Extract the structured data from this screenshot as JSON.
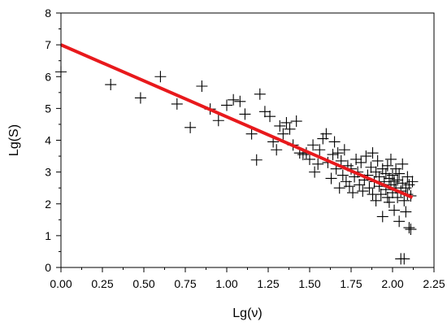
{
  "chart_data": {
    "type": "scatter",
    "title": "",
    "xlabel": "Lg(ν)",
    "ylabel": "Lg(S)",
    "xlim": [
      0.0,
      2.25
    ],
    "ylim": [
      0,
      8
    ],
    "x_ticks": [
      "0.00",
      "0.25",
      "0.50",
      "0.75",
      "1.00",
      "1.25",
      "1.50",
      "1.75",
      "2.00",
      "2.25"
    ],
    "y_ticks": [
      "0",
      "1",
      "2",
      "3",
      "4",
      "5",
      "6",
      "7",
      "8"
    ],
    "grid": false,
    "marker": "plus",
    "marker_color": "#000000",
    "fit_line": {
      "x": [
        0.0,
        2.12
      ],
      "y": [
        7.0,
        2.2
      ],
      "color": "#e8191c"
    },
    "points": [
      [
        0.0,
        6.15
      ],
      [
        0.3,
        5.75
      ],
      [
        0.48,
        5.33
      ],
      [
        0.6,
        6.0
      ],
      [
        0.7,
        5.14
      ],
      [
        0.78,
        4.4
      ],
      [
        0.85,
        5.7
      ],
      [
        0.9,
        4.98
      ],
      [
        0.95,
        4.62
      ],
      [
        1.0,
        5.1
      ],
      [
        1.04,
        5.27
      ],
      [
        1.08,
        5.22
      ],
      [
        1.11,
        4.82
      ],
      [
        1.15,
        4.2
      ],
      [
        1.18,
        3.38
      ],
      [
        1.2,
        5.45
      ],
      [
        1.23,
        4.9
      ],
      [
        1.26,
        4.75
      ],
      [
        1.28,
        3.95
      ],
      [
        1.3,
        3.7
      ],
      [
        1.32,
        4.45
      ],
      [
        1.34,
        4.2
      ],
      [
        1.36,
        4.55
      ],
      [
        1.38,
        4.35
      ],
      [
        1.4,
        3.85
      ],
      [
        1.42,
        4.6
      ],
      [
        1.44,
        3.6
      ],
      [
        1.46,
        3.55
      ],
      [
        1.48,
        3.6
      ],
      [
        1.5,
        3.4
      ],
      [
        1.52,
        3.85
      ],
      [
        1.53,
        3.0
      ],
      [
        1.55,
        3.25
      ],
      [
        1.56,
        3.7
      ],
      [
        1.58,
        4.05
      ],
      [
        1.6,
        4.2
      ],
      [
        1.61,
        3.3
      ],
      [
        1.63,
        2.8
      ],
      [
        1.64,
        3.55
      ],
      [
        1.65,
        3.95
      ],
      [
        1.66,
        3.1
      ],
      [
        1.67,
        3.6
      ],
      [
        1.68,
        2.5
      ],
      [
        1.69,
        3.35
      ],
      [
        1.7,
        2.9
      ],
      [
        1.71,
        3.7
      ],
      [
        1.72,
        2.7
      ],
      [
        1.73,
        3.2
      ],
      [
        1.74,
        2.55
      ],
      [
        1.75,
        3.1
      ],
      [
        1.76,
        2.35
      ],
      [
        1.77,
        2.85
      ],
      [
        1.78,
        3.4
      ],
      [
        1.79,
        3.0
      ],
      [
        1.8,
        2.6
      ],
      [
        1.81,
        3.3
      ],
      [
        1.82,
        2.4
      ],
      [
        1.83,
        2.75
      ],
      [
        1.84,
        3.5
      ],
      [
        1.85,
        2.9
      ],
      [
        1.86,
        2.5
      ],
      [
        1.87,
        3.15
      ],
      [
        1.88,
        2.3
      ],
      [
        1.88,
        3.6
      ],
      [
        1.89,
        2.7
      ],
      [
        1.9,
        3.0
      ],
      [
        1.9,
        2.1
      ],
      [
        1.91,
        3.35
      ],
      [
        1.92,
        2.55
      ],
      [
        1.92,
        2.85
      ],
      [
        1.93,
        2.3
      ],
      [
        1.94,
        3.1
      ],
      [
        1.94,
        1.6
      ],
      [
        1.95,
        2.7
      ],
      [
        1.96,
        2.95
      ],
      [
        1.96,
        2.45
      ],
      [
        1.97,
        2.2
      ],
      [
        1.97,
        3.2
      ],
      [
        1.98,
        2.8
      ],
      [
        1.98,
        2.05
      ],
      [
        1.99,
        2.6
      ],
      [
        1.99,
        3.4
      ],
      [
        2.0,
        2.35
      ],
      [
        2.0,
        2.9
      ],
      [
        2.01,
        2.7
      ],
      [
        2.01,
        1.8
      ],
      [
        2.02,
        3.1
      ],
      [
        2.02,
        2.5
      ],
      [
        2.03,
        2.2
      ],
      [
        2.03,
        2.75
      ],
      [
        2.04,
        2.95
      ],
      [
        2.04,
        1.45
      ],
      [
        2.05,
        2.4
      ],
      [
        2.05,
        0.27
      ],
      [
        2.06,
        2.65
      ],
      [
        2.06,
        3.25
      ],
      [
        2.07,
        2.1
      ],
      [
        2.07,
        0.27
      ],
      [
        2.08,
        2.5
      ],
      [
        2.08,
        1.75
      ],
      [
        2.09,
        2.85
      ],
      [
        2.09,
        2.3
      ],
      [
        2.1,
        2.6
      ],
      [
        2.1,
        1.25
      ],
      [
        2.11,
        2.25
      ],
      [
        2.11,
        1.2
      ],
      [
        2.12,
        2.7
      ]
    ]
  }
}
